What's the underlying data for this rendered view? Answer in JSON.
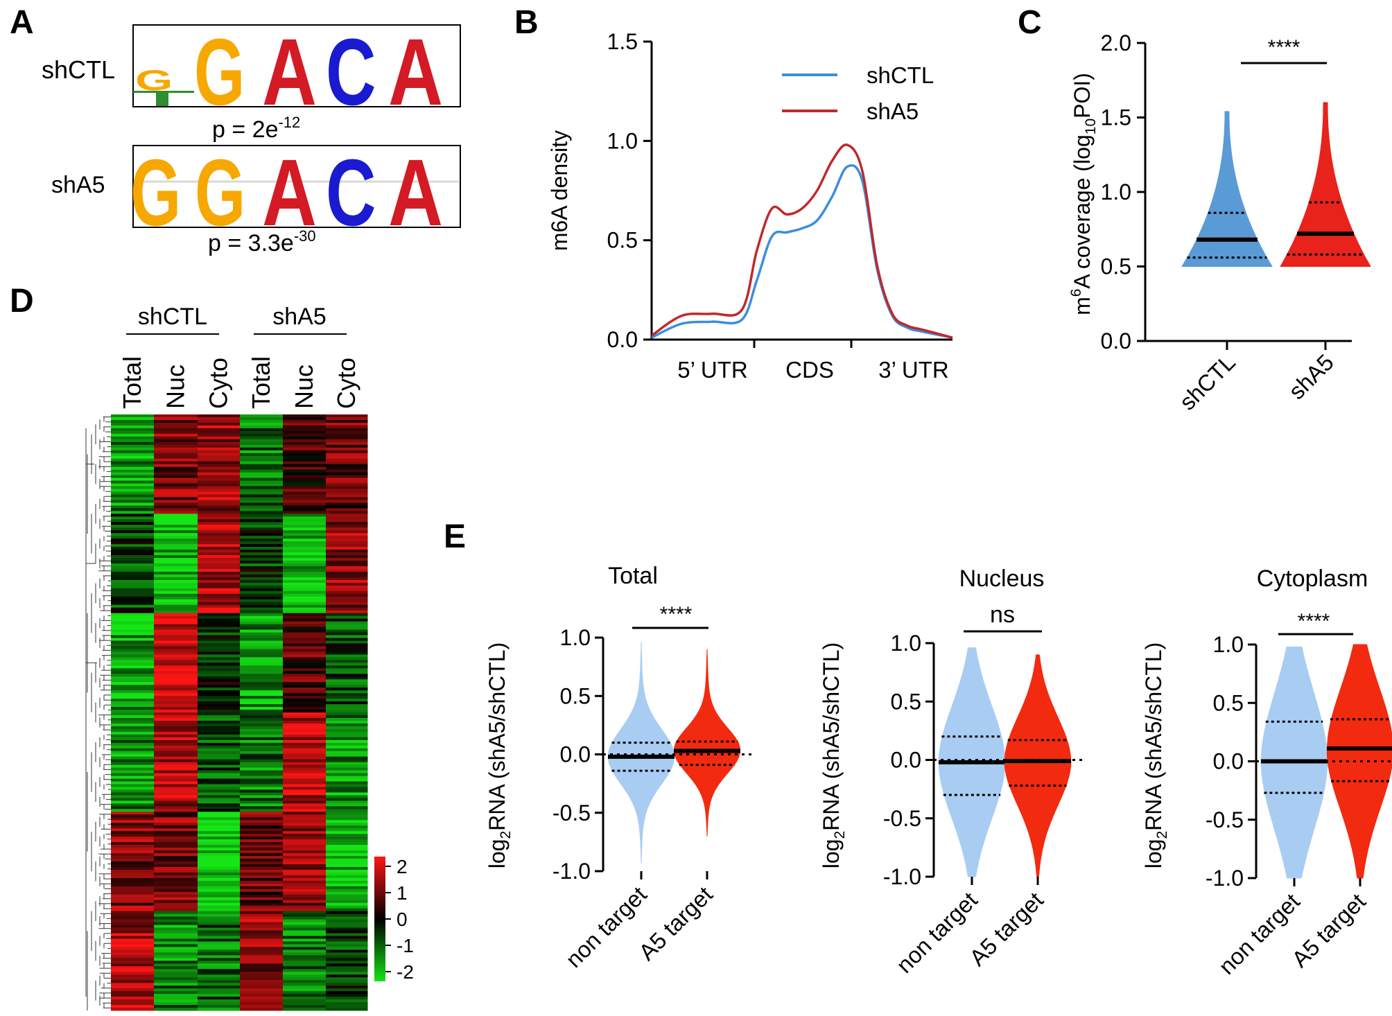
{
  "panel_labels": {
    "a": "A",
    "b": "B",
    "c": "C",
    "d": "D",
    "e": "E"
  },
  "colors": {
    "shctl_line": "#3b8fdc",
    "sha5_line": "#c0282b",
    "shctl_violin": "#5b9bd5",
    "sha5_violin": "#e8231c",
    "e_nontarget": "#a9cdf2",
    "e_target": "#f22a10",
    "logo_A": "#d41a24",
    "logo_C": "#1a1ad0",
    "logo_G": "#f7a800",
    "logo_T": "#2f8f2f",
    "heat_high": "#ff1515",
    "heat_mid": "#000000",
    "heat_low": "#15e515"
  },
  "panel_a": {
    "logos": [
      {
        "name": "shCTL",
        "letters": [
          "G",
          "G",
          "A",
          "C",
          "A"
        ],
        "p_base": "p = 2e",
        "p_exp": "-12"
      },
      {
        "name": "shA5",
        "letters": [
          "G",
          "G",
          "A",
          "C",
          "A"
        ],
        "p_base": "p = 3.3e",
        "p_exp": "-30"
      }
    ]
  },
  "panel_b": {
    "ylabel": "m6A density",
    "yticks": [
      "0.0",
      "0.5",
      "1.0",
      "1.5"
    ],
    "xticks": [
      "5’ UTR",
      "CDS",
      "3’ UTR"
    ],
    "legend": [
      "shCTL",
      "shA5"
    ]
  },
  "panel_c": {
    "ylabel_main": "m",
    "ylabel_sup": "6",
    "ylabel_rest": "A coverage (log",
    "ylabel_sub": "10",
    "ylabel_end": "POI)",
    "yticks": [
      "0.0",
      "0.5",
      "1.0",
      "1.5",
      "2.0"
    ],
    "groups": [
      "shCTL",
      "shA5"
    ],
    "significance": "****"
  },
  "panel_d": {
    "groups": [
      "shCTL",
      "shA5"
    ],
    "columns": [
      "Total",
      "Nuc",
      "Cyto",
      "Total",
      "Nuc",
      "Cyto"
    ],
    "scale_ticks": [
      "2",
      "1",
      "0",
      "-1",
      "-2"
    ]
  },
  "panel_e": {
    "ylabel_pre": "log",
    "ylabel_sub": "2",
    "ylabel_post": "RNA (shA5/shCTL)",
    "yticks": [
      "-1.0",
      "-0.5",
      "0.0",
      "0.5",
      "1.0"
    ],
    "xticks": [
      "non target",
      "A5 target"
    ],
    "subplots": [
      {
        "title": "Total",
        "significance": "****"
      },
      {
        "title": "Nucleus",
        "significance": "ns"
      },
      {
        "title": "Cytoplasm",
        "significance": "****"
      }
    ]
  },
  "chart_data": [
    {
      "type": "line",
      "panel": "B",
      "ylabel": "m6A density",
      "ylim": [
        0,
        1.5
      ],
      "x_regions": [
        "5’ UTR",
        "CDS",
        "3’ UTR"
      ],
      "x": [
        0,
        0.1,
        0.2,
        0.3,
        0.35,
        0.4,
        0.45,
        0.5,
        0.55,
        0.6,
        0.65,
        0.7,
        0.75,
        0.8,
        0.85,
        0.9,
        1.0
      ],
      "series": [
        {
          "name": "shCTL",
          "values": [
            0.01,
            0.08,
            0.09,
            0.1,
            0.3,
            0.52,
            0.54,
            0.56,
            0.6,
            0.72,
            0.87,
            0.8,
            0.35,
            0.12,
            0.06,
            0.04,
            0.01
          ]
        },
        {
          "name": "shA5",
          "values": [
            0.02,
            0.12,
            0.13,
            0.15,
            0.45,
            0.66,
            0.63,
            0.66,
            0.75,
            0.9,
            0.98,
            0.85,
            0.37,
            0.13,
            0.07,
            0.05,
            0.01
          ]
        }
      ],
      "legend": "top-right"
    },
    {
      "type": "violin",
      "panel": "C",
      "ylim": [
        0,
        2.0
      ],
      "categories": [
        "shCTL",
        "shA5"
      ],
      "median": [
        0.68,
        0.72
      ],
      "q1": [
        0.56,
        0.58
      ],
      "q3": [
        0.86,
        0.93
      ],
      "min": [
        0.5,
        0.5
      ],
      "max": [
        1.54,
        1.6
      ],
      "significance": "****"
    },
    {
      "type": "heatmap",
      "panel": "D",
      "columns": [
        "Total",
        "Nuc",
        "Cyto",
        "Total",
        "Nuc",
        "Cyto"
      ],
      "column_groups": [
        "shCTL",
        "shCTL",
        "shCTL",
        "shA5",
        "shA5",
        "shA5"
      ],
      "color_scale": [
        -2,
        2
      ],
      "cluster_blocks": [
        {
          "Total": -1.2,
          "Nuc": 1.0,
          "Cyto": 1.2,
          "Total2": -1.0,
          "Nuc2": 0.5,
          "Cyto2": 0.8
        },
        {
          "Total": -0.5,
          "Nuc": -1.6,
          "Cyto": 1.4,
          "Total2": -0.4,
          "Nuc2": -1.6,
          "Cyto2": 1.1
        },
        {
          "Total": -1.4,
          "Nuc": 1.7,
          "Cyto": -0.3,
          "Total2": -1.3,
          "Nuc2": 0.6,
          "Cyto2": -0.6
        },
        {
          "Total": -1.2,
          "Nuc": 1.3,
          "Cyto": -0.8,
          "Total2": -1.0,
          "Nuc2": 1.5,
          "Cyto2": -1.2
        },
        {
          "Total": 1.0,
          "Nuc": 1.0,
          "Cyto": -1.9,
          "Total2": 0.8,
          "Nuc2": 1.0,
          "Cyto2": -1.6
        },
        {
          "Total": 1.3,
          "Nuc": -1.1,
          "Cyto": -0.9,
          "Total2": 1.2,
          "Nuc2": -1.0,
          "Cyto2": -0.5
        }
      ]
    },
    {
      "type": "violin",
      "panel": "E-Total",
      "ylim": [
        -1.0,
        1.0
      ],
      "categories": [
        "non target",
        "A5 target"
      ],
      "median": [
        -0.02,
        0.03
      ],
      "q1": [
        -0.14,
        -0.09
      ],
      "q3": [
        0.1,
        0.11
      ],
      "min": [
        -0.93,
        -0.7
      ],
      "max": [
        0.96,
        0.9
      ],
      "significance": "****"
    },
    {
      "type": "violin",
      "panel": "E-Nucleus",
      "ylim": [
        -1.0,
        1.0
      ],
      "categories": [
        "non target",
        "A5 target"
      ],
      "median": [
        -0.02,
        -0.01
      ],
      "q1": [
        -0.3,
        -0.22
      ],
      "q3": [
        0.2,
        0.17
      ],
      "min": [
        -1.0,
        -1.0
      ],
      "max": [
        0.96,
        0.9
      ],
      "significance": "ns"
    },
    {
      "type": "violin",
      "panel": "E-Cytoplasm",
      "ylim": [
        -1.0,
        1.0
      ],
      "categories": [
        "non target",
        "A5 target"
      ],
      "median": [
        0.0,
        0.11
      ],
      "q1": [
        -0.27,
        -0.17
      ],
      "q3": [
        0.34,
        0.36
      ],
      "min": [
        -1.0,
        -1.0
      ],
      "max": [
        0.98,
        1.0
      ],
      "significance": "****"
    }
  ]
}
